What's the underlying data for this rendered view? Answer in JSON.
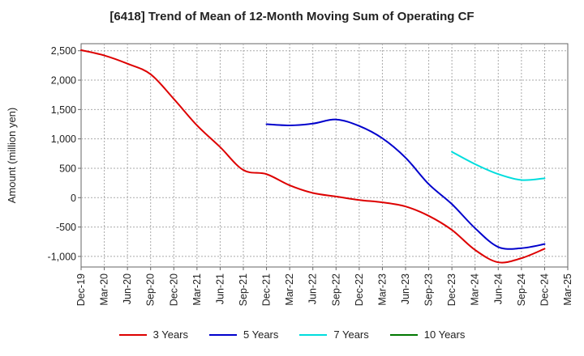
{
  "chart_data": {
    "type": "line",
    "title": "[6418]  Trend of Mean of 12-Month Moving Sum of Operating CF",
    "xlabel": "",
    "ylabel": "Amount (million yen)",
    "ylim": [
      -1180,
      2620
    ],
    "yticks": [
      2500,
      2000,
      1500,
      1000,
      500,
      0,
      -500,
      -1000
    ],
    "ytick_labels": [
      "2,500",
      "2,000",
      "1,500",
      "1,000",
      "500",
      "0",
      "-500",
      "-1,000"
    ],
    "x_ticks": [
      "Dec-19",
      "Mar-20",
      "Jun-20",
      "Sep-20",
      "Dec-20",
      "Mar-21",
      "Jun-21",
      "Sep-21",
      "Dec-21",
      "Mar-22",
      "Jun-22",
      "Sep-22",
      "Dec-22",
      "Mar-23",
      "Jun-23",
      "Sep-23",
      "Dec-23",
      "Mar-24",
      "Jun-24",
      "Sep-24",
      "Dec-24",
      "Mar-25"
    ],
    "grid": true,
    "legend_position": "bottom",
    "series": [
      {
        "name": "3 Years",
        "color": "#dd0000",
        "start_index": 0,
        "values": [
          2510,
          2420,
          2280,
          2100,
          1680,
          1230,
          860,
          470,
          400,
          210,
          80,
          20,
          -40,
          -80,
          -150,
          -310,
          -550,
          -890,
          -1100,
          -1030,
          -870
        ]
      },
      {
        "name": "5 Years",
        "color": "#0000cc",
        "start_index": 8,
        "values": [
          1250,
          1230,
          1260,
          1330,
          1220,
          1010,
          680,
          230,
          -110,
          -520,
          -840,
          -860,
          -790
        ]
      },
      {
        "name": "7 Years",
        "color": "#00dddd",
        "start_index": 16,
        "values": [
          780,
          570,
          400,
          300,
          330
        ]
      },
      {
        "name": "10 Years",
        "color": "#007700",
        "start_index": 0,
        "values": []
      }
    ]
  }
}
